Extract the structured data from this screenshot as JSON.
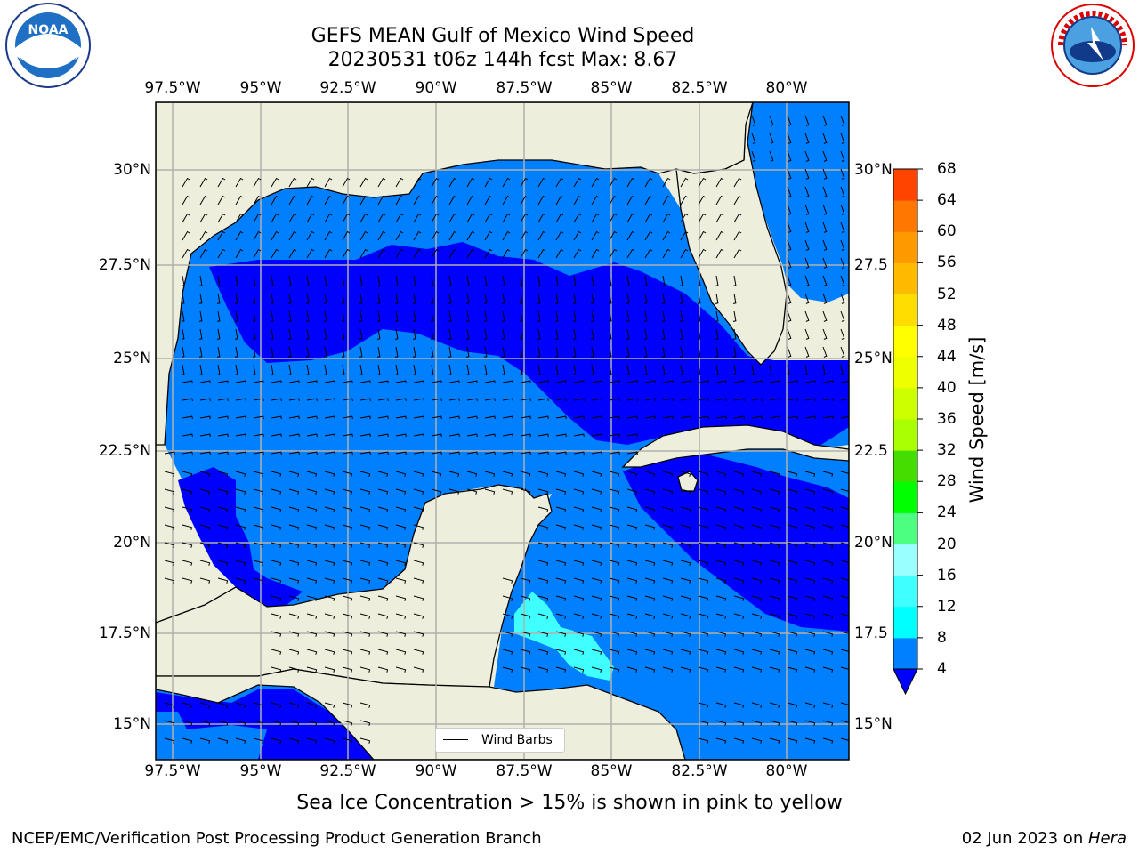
{
  "header": {
    "title": "GEFS MEAN Gulf of Mexico Wind Speed",
    "subtitle": "20230531 t06z 144h fcst   Max: 8.67"
  },
  "map": {
    "lon_ticks": [
      "97.5°W",
      "95°W",
      "92.5°W",
      "90°W",
      "87.5°W",
      "85°W",
      "82.5°W",
      "80°W"
    ],
    "lat_ticks_left": [
      "30°N",
      "27.5°N",
      "25°N",
      "22.5°N",
      "20°N",
      "17.5°N",
      "15°N"
    ],
    "lat_ticks_right": [
      "30°N",
      "27.5",
      "25°N",
      "22.5",
      "20°N",
      "17.5",
      "15°N"
    ],
    "legend_label": "Wind Barbs",
    "colors": {
      "land": "#eeeedd",
      "level_4_8": "#0080ff",
      "level_0_4": "#0000ff",
      "level_8_12": "#40ffff",
      "grid": "#b0b0b0"
    }
  },
  "colorbar": {
    "label": "Wind Speed [m/s]",
    "ticks": [
      "4",
      "8",
      "12",
      "16",
      "20",
      "24",
      "28",
      "32",
      "36",
      "40",
      "44",
      "48",
      "52",
      "56",
      "60",
      "64",
      "68"
    ],
    "colors": [
      "#0080ff",
      "#00ffff",
      "#40ffff",
      "#99ffff",
      "#4dff80",
      "#00ff00",
      "#44dd00",
      "#aaff00",
      "#ccff00",
      "#eeff00",
      "#ffff00",
      "#ffdd00",
      "#ffbb00",
      "#ff9900",
      "#ff7700",
      "#ff4400",
      "#ff0000"
    ],
    "extend_color": "#0000ff"
  },
  "footer": {
    "ice_note": "Sea Ice Concentration > 15% is shown in pink to yellow",
    "left": "NCEP/EMC/Verification Post Processing Product Generation Branch",
    "right_date": "02 Jun 2023 on ",
    "right_machine": "Hera"
  },
  "logos": {
    "noaa_text": "NOAA",
    "nws_text": "NATIONAL WEATHER SERVICE"
  }
}
